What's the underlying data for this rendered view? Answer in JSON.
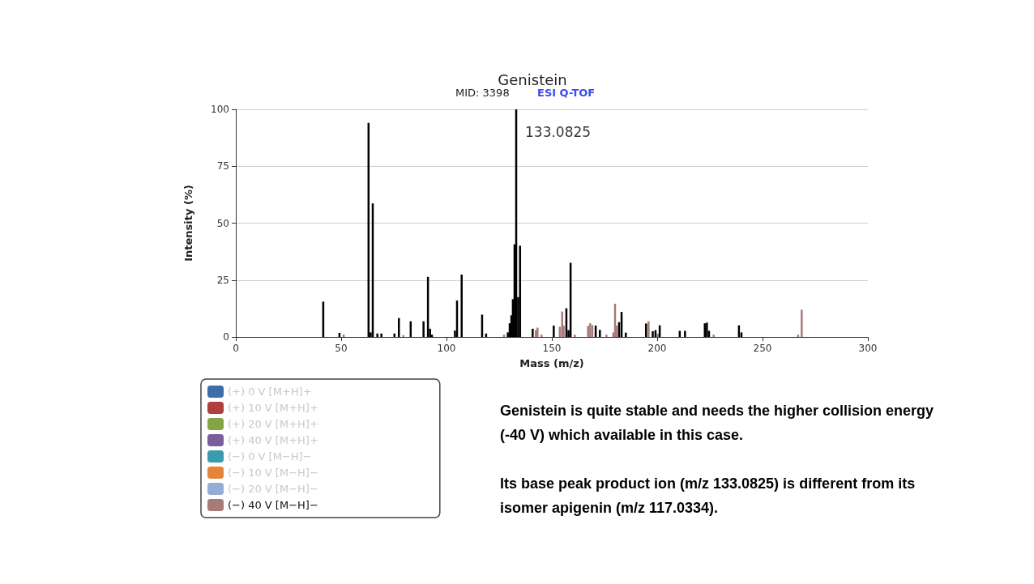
{
  "chart_data": {
    "type": "bar",
    "title": "Genistein",
    "subtitle": "MID: 3398",
    "xlabel": "Mass (m/z)",
    "ylabel": "Intensity (%)",
    "xlim": [
      0,
      300
    ],
    "xticks": [
      0,
      50,
      100,
      150,
      200,
      250,
      300
    ],
    "ylim": [
      0,
      100
    ],
    "yticks": [
      0,
      25,
      50,
      75,
      100
    ],
    "grid": "y",
    "legend": "bottom left",
    "annotations": [
      "ESI Q-TOF",
      {
        "text": "133.0825",
        "x": 133.0825,
        "y": 100
      },
      "Genistein is quite stable and needs the higher collision energy (-40 V) which available in this case.",
      "Its base peak product ion (m/z 133.0825) is different from its isomer apigenin (m/z 117.0334)."
    ],
    "series": [
      {
        "color": "#000000",
        "x": [
          41.5,
          49.2,
          63,
          64,
          65,
          67.2,
          69.1,
          75.3,
          77.4,
          83,
          89.1,
          91.2,
          92.2,
          93.1,
          104,
          105,
          107.2,
          116.9,
          118.8,
          129.1,
          130,
          130.8,
          131.5,
          132.3,
          133.0825,
          134,
          134.9,
          140.9,
          150.9,
          156.9,
          157.9,
          158.9,
          170.8,
          172.8,
          181.9,
          183.1,
          185.1,
          194.7,
          197.9,
          199.2,
          201.2,
          210.7,
          213.2,
          222.6,
          223.6,
          224.6,
          238.8,
          240
        ],
        "values": [
          15.5,
          1.8,
          94,
          2,
          58.7,
          1.5,
          1.5,
          1.5,
          8.3,
          6.9,
          6.9,
          26.4,
          3.6,
          1,
          2.8,
          16,
          27.4,
          9.8,
          1.5,
          2,
          6,
          9.5,
          16.6,
          40.7,
          100,
          17.5,
          40.1,
          3.6,
          5,
          12.6,
          3,
          32.6,
          5,
          3.1,
          6.5,
          11,
          1.9,
          5.9,
          2.5,
          3,
          5.1,
          2.7,
          2.7,
          6,
          6.3,
          2.7,
          5.1,
          2
        ]
      },
      {
        "name": "(+) 0 V [M+H]+",
        "color": "#3e6ea8"
      },
      {
        "name": "(+) 10 V [M+H]+",
        "color": "#b04040"
      },
      {
        "name": "(+) 20 V [M+H]+",
        "color": "#85a545"
      },
      {
        "name": "(+) 40 V [M+H]+",
        "color": "#7a5e9e"
      },
      {
        "name": "(−) 0 V [M−H]−",
        "color": "#3a9bae"
      },
      {
        "name": "(−) 10 V [M−H]−",
        "color": "#e6843a"
      },
      {
        "name": "(−) 20 V [M−H]−",
        "color": "#94acd6"
      },
      {
        "name": "(−) 40 V [M−H]−",
        "color": "#a87a78",
        "x": [
          51.2,
          79.5,
          127.3,
          142.4,
          143.2,
          145.1,
          153.8,
          154.9,
          155.6,
          160.9,
          167.2,
          168.2,
          169.2,
          175.9,
          179.2,
          180,
          180.9,
          195.9,
          200.3,
          226.8,
          266.9,
          268.6
        ],
        "values": [
          1,
          0.8,
          1,
          3,
          4.1,
          1,
          4.5,
          11.2,
          5,
          1,
          4.9,
          6,
          5.2,
          1,
          2,
          14.6,
          5,
          6.9,
          1.5,
          1,
          1,
          12
        ]
      }
    ]
  }
}
